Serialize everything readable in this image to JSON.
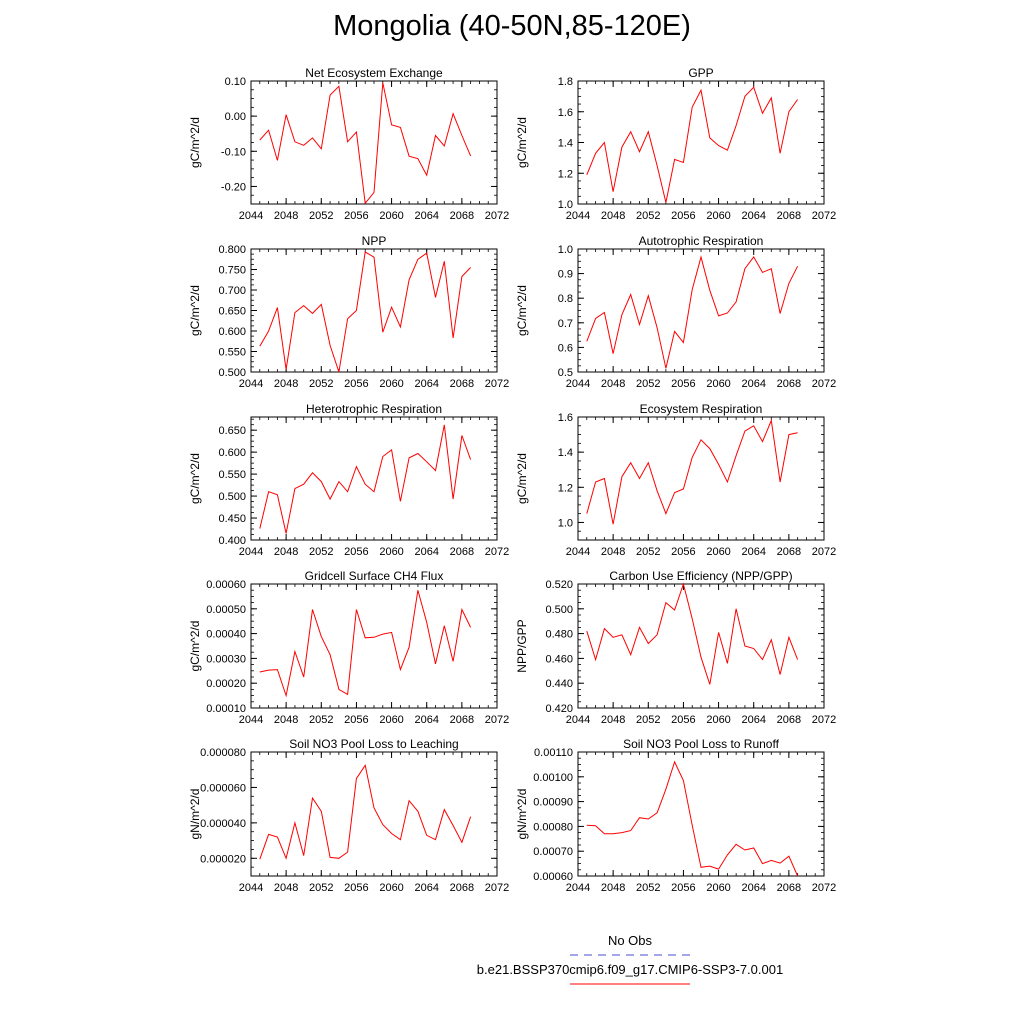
{
  "page_title": "Mongolia (40-50N,85-120E)",
  "legend": {
    "obs_label": "No Obs",
    "obs_color": "#4b4bd6",
    "model_label": "b.e21.BSSP370cmip6.f09_g17.CMIP6-SSP3-7.0.001",
    "model_color": "#ff0000"
  },
  "chart_data": [
    {
      "type": "line",
      "title": "Net Ecosystem Exchange",
      "ylabel": "gC/m^2/d",
      "xlim": [
        2044,
        2072
      ],
      "ylim": [
        -0.25,
        0.1
      ],
      "xticks": [
        "2044",
        "2048",
        "2052",
        "2056",
        "2060",
        "2064",
        "2068",
        "2072"
      ],
      "yticks": [
        "-0.20",
        "-0.10",
        "0.00",
        "0.10"
      ],
      "x": [
        2045,
        2046,
        2047,
        2048,
        2049,
        2050,
        2051,
        2052,
        2053,
        2054,
        2055,
        2056,
        2057,
        2058,
        2059,
        2060,
        2061,
        2062,
        2063,
        2064,
        2065,
        2066,
        2067,
        2068,
        2069
      ],
      "series": [
        {
          "values": [
            -0.068,
            -0.04,
            -0.126,
            0.004,
            -0.073,
            -0.083,
            -0.062,
            -0.093,
            0.06,
            0.085,
            -0.073,
            -0.045,
            -0.248,
            -0.217,
            0.095,
            -0.025,
            -0.032,
            -0.114,
            -0.121,
            -0.168,
            -0.055,
            -0.085,
            0.007,
            -0.055,
            -0.113
          ]
        }
      ]
    },
    {
      "type": "line",
      "title": "GPP",
      "ylabel": "gC/m^2/d",
      "xlim": [
        2044,
        2072
      ],
      "ylim": [
        1.0,
        1.8
      ],
      "xticks": [
        "2044",
        "2048",
        "2052",
        "2056",
        "2060",
        "2064",
        "2068",
        "2072"
      ],
      "yticks": [
        "1.0",
        "1.2",
        "1.4",
        "1.6",
        "1.8"
      ],
      "x": [
        2045,
        2046,
        2047,
        2048,
        2049,
        2050,
        2051,
        2052,
        2053,
        2054,
        2055,
        2056,
        2057,
        2058,
        2059,
        2060,
        2061,
        2062,
        2063,
        2064,
        2065,
        2066,
        2067,
        2068,
        2069
      ],
      "series": [
        {
          "values": [
            1.19,
            1.33,
            1.4,
            1.08,
            1.37,
            1.47,
            1.34,
            1.47,
            1.25,
            1.01,
            1.29,
            1.27,
            1.63,
            1.74,
            1.43,
            1.38,
            1.35,
            1.51,
            1.7,
            1.76,
            1.59,
            1.69,
            1.33,
            1.6,
            1.68
          ]
        }
      ]
    },
    {
      "type": "line",
      "title": "NPP",
      "ylabel": "gC/m^2/d",
      "xlim": [
        2044,
        2072
      ],
      "ylim": [
        0.5,
        0.8
      ],
      "xticks": [
        "2044",
        "2048",
        "2052",
        "2056",
        "2060",
        "2064",
        "2068",
        "2072"
      ],
      "yticks": [
        "0.500",
        "0.550",
        "0.600",
        "0.650",
        "0.700",
        "0.750",
        "0.800"
      ],
      "x": [
        2045,
        2046,
        2047,
        2048,
        2049,
        2050,
        2051,
        2052,
        2053,
        2054,
        2055,
        2056,
        2057,
        2058,
        2059,
        2060,
        2061,
        2062,
        2063,
        2064,
        2065,
        2066,
        2067,
        2068,
        2069
      ],
      "series": [
        {
          "values": [
            0.563,
            0.6,
            0.657,
            0.506,
            0.645,
            0.662,
            0.643,
            0.665,
            0.565,
            0.5,
            0.63,
            0.65,
            0.793,
            0.78,
            0.597,
            0.658,
            0.61,
            0.725,
            0.775,
            0.79,
            0.682,
            0.77,
            0.583,
            0.733,
            0.755
          ]
        }
      ]
    },
    {
      "type": "line",
      "title": "Autotrophic Respiration",
      "ylabel": "gC/m^2/d",
      "xlim": [
        2044,
        2072
      ],
      "ylim": [
        0.5,
        1.0
      ],
      "xticks": [
        "2044",
        "2048",
        "2052",
        "2056",
        "2060",
        "2064",
        "2068",
        "2072"
      ],
      "yticks": [
        "0.5",
        "0.6",
        "0.7",
        "0.8",
        "0.9",
        "1.0"
      ],
      "x": [
        2045,
        2046,
        2047,
        2048,
        2049,
        2050,
        2051,
        2052,
        2053,
        2054,
        2055,
        2056,
        2057,
        2058,
        2059,
        2060,
        2061,
        2062,
        2063,
        2064,
        2065,
        2066,
        2067,
        2068,
        2069
      ],
      "series": [
        {
          "values": [
            0.625,
            0.718,
            0.742,
            0.575,
            0.733,
            0.815,
            0.693,
            0.81,
            0.68,
            0.515,
            0.665,
            0.62,
            0.835,
            0.967,
            0.832,
            0.728,
            0.74,
            0.785,
            0.92,
            0.968,
            0.905,
            0.92,
            0.738,
            0.86,
            0.93
          ]
        }
      ]
    },
    {
      "type": "line",
      "title": "Heterotrophic Respiration",
      "ylabel": "gC/m^2/d",
      "xlim": [
        2044,
        2072
      ],
      "ylim": [
        0.4,
        0.68
      ],
      "xticks": [
        "2044",
        "2048",
        "2052",
        "2056",
        "2060",
        "2064",
        "2068",
        "2072"
      ],
      "yticks": [
        "0.400",
        "0.450",
        "0.500",
        "0.550",
        "0.600",
        "0.650"
      ],
      "x": [
        2045,
        2046,
        2047,
        2048,
        2049,
        2050,
        2051,
        2052,
        2053,
        2054,
        2055,
        2056,
        2057,
        2058,
        2059,
        2060,
        2061,
        2062,
        2063,
        2064,
        2065,
        2066,
        2067,
        2068,
        2069
      ],
      "series": [
        {
          "values": [
            0.426,
            0.51,
            0.503,
            0.415,
            0.517,
            0.527,
            0.553,
            0.533,
            0.493,
            0.533,
            0.51,
            0.567,
            0.527,
            0.51,
            0.59,
            0.605,
            0.488,
            0.587,
            0.597,
            0.578,
            0.558,
            0.662,
            0.493,
            0.638,
            0.583
          ]
        }
      ]
    },
    {
      "type": "line",
      "title": "Ecosystem Respiration",
      "ylabel": "gC/m^2/d",
      "xlim": [
        2044,
        2072
      ],
      "ylim": [
        0.9,
        1.6
      ],
      "xticks": [
        "2044",
        "2048",
        "2052",
        "2056",
        "2060",
        "2064",
        "2068",
        "2072"
      ],
      "yticks": [
        "1.0",
        "1.2",
        "1.4",
        "1.6"
      ],
      "x": [
        2045,
        2046,
        2047,
        2048,
        2049,
        2050,
        2051,
        2052,
        2053,
        2054,
        2055,
        2056,
        2057,
        2058,
        2059,
        2060,
        2061,
        2062,
        2063,
        2064,
        2065,
        2066,
        2067,
        2068,
        2069
      ],
      "series": [
        {
          "values": [
            1.05,
            1.23,
            1.25,
            0.99,
            1.26,
            1.34,
            1.25,
            1.34,
            1.18,
            1.05,
            1.17,
            1.19,
            1.37,
            1.47,
            1.42,
            1.33,
            1.23,
            1.38,
            1.52,
            1.55,
            1.46,
            1.58,
            1.23,
            1.5,
            1.51
          ]
        }
      ]
    },
    {
      "type": "line",
      "title": "Gridcell Surface CH4 Flux",
      "ylabel": "gC/m^2/d",
      "xlim": [
        2044,
        2072
      ],
      "ylim": [
        0.0001,
        0.0006
      ],
      "xticks": [
        "2044",
        "2048",
        "2052",
        "2056",
        "2060",
        "2064",
        "2068",
        "2072"
      ],
      "yticks": [
        "0.00010",
        "0.00020",
        "0.00030",
        "0.00040",
        "0.00050",
        "0.00060"
      ],
      "x": [
        2045,
        2046,
        2047,
        2048,
        2049,
        2050,
        2051,
        2052,
        2053,
        2054,
        2055,
        2056,
        2057,
        2058,
        2059,
        2060,
        2061,
        2062,
        2063,
        2064,
        2065,
        2066,
        2067,
        2068,
        2069
      ],
      "series": [
        {
          "values": [
            0.000245,
            0.000253,
            0.000255,
            0.00015,
            0.000328,
            0.000225,
            0.000497,
            0.000388,
            0.000315,
            0.000175,
            0.000155,
            0.000497,
            0.000383,
            0.000385,
            0.000398,
            0.000405,
            0.000255,
            0.000345,
            0.000575,
            0.000445,
            0.000278,
            0.000432,
            0.000288,
            0.000497,
            0.000425
          ]
        }
      ]
    },
    {
      "type": "line",
      "title": "Carbon Use Efficiency (NPP/GPP)",
      "ylabel": "NPP/GPP",
      "xlim": [
        2044,
        2072
      ],
      "ylim": [
        0.42,
        0.52
      ],
      "xticks": [
        "2044",
        "2048",
        "2052",
        "2056",
        "2060",
        "2064",
        "2068",
        "2072"
      ],
      "yticks": [
        "0.420",
        "0.440",
        "0.460",
        "0.480",
        "0.500",
        "0.520"
      ],
      "x": [
        2045,
        2046,
        2047,
        2048,
        2049,
        2050,
        2051,
        2052,
        2053,
        2054,
        2055,
        2056,
        2057,
        2058,
        2059,
        2060,
        2061,
        2062,
        2063,
        2064,
        2065,
        2066,
        2067,
        2068,
        2069
      ],
      "series": [
        {
          "values": [
            0.482,
            0.459,
            0.484,
            0.477,
            0.479,
            0.463,
            0.485,
            0.472,
            0.479,
            0.505,
            0.499,
            0.52,
            0.492,
            0.461,
            0.439,
            0.481,
            0.456,
            0.5,
            0.47,
            0.468,
            0.459,
            0.475,
            0.447,
            0.477,
            0.459
          ]
        }
      ]
    },
    {
      "type": "line",
      "title": "Soil NO3 Pool Loss to Leaching",
      "ylabel": "gN/m^2/d",
      "xlim": [
        2044,
        2072
      ],
      "ylim": [
        1e-05,
        8e-05
      ],
      "xticks": [
        "2044",
        "2048",
        "2052",
        "2056",
        "2060",
        "2064",
        "2068",
        "2072"
      ],
      "yticks": [
        "0.000020",
        "0.000040",
        "0.000060",
        "0.000080"
      ],
      "x": [
        2045,
        2046,
        2047,
        2048,
        2049,
        2050,
        2051,
        2052,
        2053,
        2054,
        2055,
        2056,
        2057,
        2058,
        2059,
        2060,
        2061,
        2062,
        2063,
        2064,
        2065,
        2066,
        2067,
        2068,
        2069
      ],
      "series": [
        {
          "values": [
            1.95e-05,
            3.35e-05,
            3.2e-05,
            2e-05,
            4e-05,
            2.15e-05,
            5.4e-05,
            4.65e-05,
            2.05e-05,
            2e-05,
            2.35e-05,
            6.5e-05,
            7.25e-05,
            4.85e-05,
            3.9e-05,
            3.4e-05,
            3.05e-05,
            5.25e-05,
            4.65e-05,
            3.3e-05,
            3.05e-05,
            4.75e-05,
            3.85e-05,
            2.9e-05,
            4.35e-05
          ]
        }
      ]
    },
    {
      "type": "line",
      "title": "Soil NO3 Pool Loss to Runoff",
      "ylabel": "gN/m^2/d",
      "xlim": [
        2044,
        2072
      ],
      "ylim": [
        0.0006,
        0.0011
      ],
      "xticks": [
        "2044",
        "2048",
        "2052",
        "2056",
        "2060",
        "2064",
        "2068",
        "2072"
      ],
      "yticks": [
        "0.00060",
        "0.00070",
        "0.00080",
        "0.00090",
        "0.00100",
        "0.00110"
      ],
      "x": [
        2045,
        2046,
        2047,
        2048,
        2049,
        2050,
        2051,
        2052,
        2053,
        2054,
        2055,
        2056,
        2057,
        2058,
        2059,
        2060,
        2061,
        2062,
        2063,
        2064,
        2065,
        2066,
        2067,
        2068,
        2069
      ],
      "series": [
        {
          "values": [
            0.000805,
            0.000803,
            0.00077,
            0.00077,
            0.000775,
            0.000783,
            0.000835,
            0.00083,
            0.000855,
            0.00095,
            0.00106,
            0.000985,
            0.000805,
            0.000635,
            0.00064,
            0.000628,
            0.000685,
            0.000728,
            0.000705,
            0.000713,
            0.00065,
            0.000663,
            0.000652,
            0.00068,
            0.0006
          ]
        }
      ]
    }
  ]
}
